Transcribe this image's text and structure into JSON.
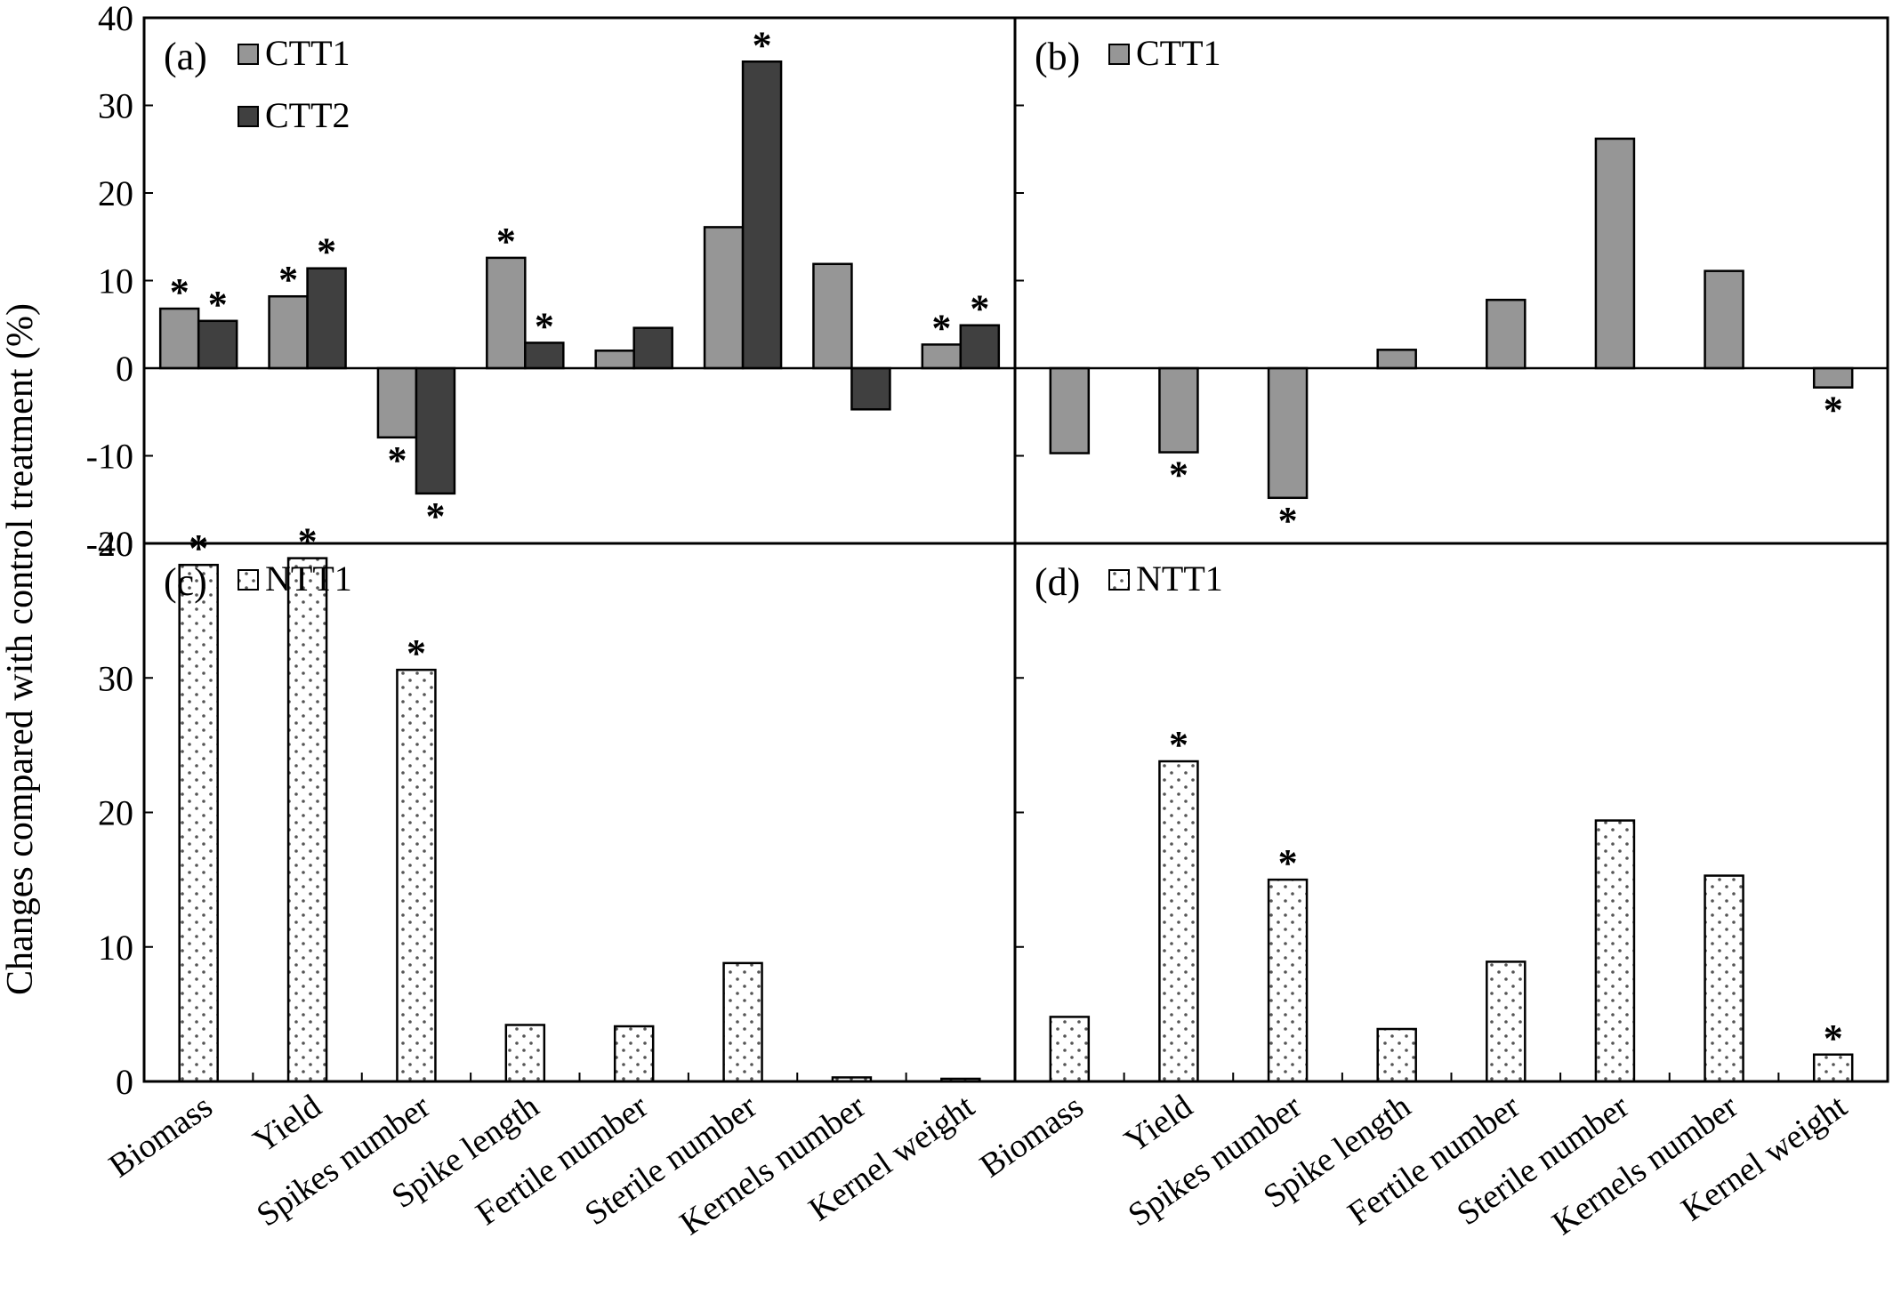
{
  "figure": {
    "ylabel": "Changes compared with control treatment (%)",
    "categories": [
      "Biomass",
      "Yield",
      "Spikes number",
      "Spike length",
      "Fertile number",
      "Sterile number",
      "Kernels number",
      "Kernel weight"
    ],
    "colors": {
      "CTT1": "#969696",
      "CTT2": "#404040",
      "NTT1": "#ffffff",
      "axis": "#000000",
      "dots": "#555555"
    }
  },
  "chart_data": [
    {
      "panel": "(a)",
      "type": "bar",
      "categories": [
        "Biomass",
        "Yield",
        "Spikes number",
        "Spike length",
        "Fertile number",
        "Sterile number",
        "Kernels number",
        "Kernel weight"
      ],
      "series": [
        {
          "name": "CTT1",
          "values": [
            6.8,
            8.2,
            -7.9,
            12.6,
            2.0,
            16.1,
            11.9,
            2.7
          ],
          "significant": [
            true,
            true,
            true,
            true,
            false,
            false,
            false,
            true
          ]
        },
        {
          "name": "CTT2",
          "values": [
            5.4,
            11.4,
            -14.3,
            2.9,
            4.6,
            35.0,
            -4.7,
            4.9
          ],
          "significant": [
            true,
            true,
            true,
            true,
            false,
            true,
            false,
            true
          ]
        }
      ],
      "ylim": [
        -20,
        40
      ],
      "yticks": [
        -20,
        -10,
        0,
        10,
        20,
        30,
        40
      ],
      "legend_position": "top-left"
    },
    {
      "panel": "(b)",
      "type": "bar",
      "categories": [
        "Biomass",
        "Yield",
        "Spikes number",
        "Spike length",
        "Fertile number",
        "Sterile number",
        "Kernels number",
        "Kernel weight"
      ],
      "series": [
        {
          "name": "CTT1",
          "values": [
            -9.7,
            -9.6,
            -14.8,
            2.1,
            7.8,
            26.2,
            11.1,
            -2.2
          ],
          "significant": [
            false,
            true,
            true,
            false,
            false,
            false,
            false,
            true
          ]
        }
      ],
      "ylim": [
        -20,
        40
      ],
      "legend_position": "top-left"
    },
    {
      "panel": "(c)",
      "type": "bar",
      "categories": [
        "Biomass",
        "Yield",
        "Spikes number",
        "Spike length",
        "Fertile number",
        "Sterile number",
        "Kernels number",
        "Kernel weight"
      ],
      "series": [
        {
          "name": "NTT1",
          "values": [
            38.4,
            38.9,
            30.6,
            4.2,
            4.1,
            8.8,
            0.3,
            0.2
          ],
          "significant": [
            true,
            true,
            true,
            false,
            false,
            false,
            false,
            false
          ]
        }
      ],
      "ylim": [
        0,
        40
      ],
      "yticks": [
        0,
        10,
        20,
        30,
        40
      ],
      "legend_position": "top-left"
    },
    {
      "panel": "(d)",
      "type": "bar",
      "categories": [
        "Biomass",
        "Yield",
        "Spikes number",
        "Spike length",
        "Fertile number",
        "Sterile number",
        "Kernels number",
        "Kernel weight"
      ],
      "series": [
        {
          "name": "NTT1",
          "values": [
            4.8,
            23.8,
            15.0,
            3.9,
            8.9,
            19.4,
            15.3,
            2.0
          ],
          "significant": [
            false,
            true,
            true,
            false,
            false,
            false,
            false,
            true
          ]
        }
      ],
      "ylim": [
        0,
        40
      ],
      "legend_position": "top-left"
    }
  ]
}
